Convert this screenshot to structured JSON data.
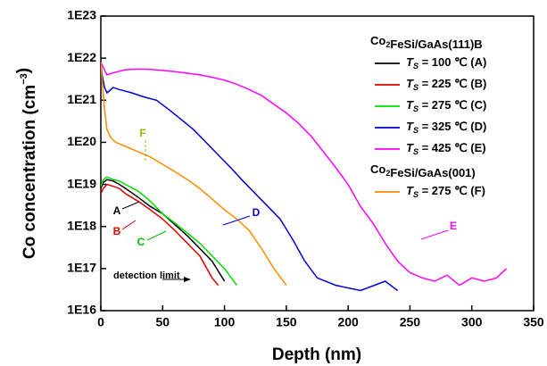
{
  "chart_data": {
    "type": "line",
    "xlabel": "Depth (nm)",
    "ylabel": "Co concentration (cm-3)",
    "xlim": [
      0,
      350
    ],
    "xticks": [
      0,
      50,
      100,
      150,
      200,
      250,
      300,
      350
    ],
    "ylim": [
      1e+16,
      1e+23
    ],
    "log_y": true,
    "yticks": [
      {
        "value": 1e+16,
        "label": "1E16"
      },
      {
        "value": 1e+17,
        "label": "1E17"
      },
      {
        "value": 1e+18,
        "label": "1E18"
      },
      {
        "value": 1e+19,
        "label": "1E19"
      },
      {
        "value": 1e+20,
        "label": "1E20"
      },
      {
        "value": 1e+21,
        "label": "1E21"
      },
      {
        "value": 1e+22,
        "label": "1E22"
      },
      {
        "value": 1e+23,
        "label": "1E23"
      }
    ],
    "legend_groups": [
      "Co2FeSi/GaAs(111)B",
      "Co2FeSi/GaAs(001)"
    ],
    "series": [
      {
        "name": "TS = 100 ℃ (A)",
        "color": "#000000",
        "group": 0,
        "x": [
          0,
          2,
          5,
          10,
          15,
          20,
          30,
          40,
          50,
          60,
          70,
          80,
          90,
          100
        ],
        "values": [
          8e+18,
          1.1e+19,
          1.3e+19,
          1.2e+19,
          1e+19,
          8e+18,
          5e+18,
          3e+18,
          2e+18,
          1.1e+18,
          6e+17,
          3e+17,
          1.5e+17,
          5e+16
        ]
      },
      {
        "name": "TS = 225 ℃ (B)",
        "color": "#e00000",
        "group": 0,
        "x": [
          0,
          2,
          5,
          10,
          15,
          20,
          30,
          40,
          50,
          60,
          70,
          80,
          90,
          95
        ],
        "values": [
          6e+18,
          8e+18,
          1e+19,
          9e+18,
          8e+18,
          6e+18,
          4e+18,
          2.5e+18,
          1.5e+18,
          8e+17,
          4e+17,
          2e+17,
          6e+16,
          4e+16
        ]
      },
      {
        "name": "TS = 275 ℃ (C)",
        "color": "#00e000",
        "group": 0,
        "x": [
          0,
          2,
          5,
          10,
          15,
          20,
          30,
          40,
          50,
          60,
          70,
          80,
          90,
          100,
          110
        ],
        "values": [
          9e+18,
          1.3e+19,
          1.5e+19,
          1.3e+19,
          1.2e+19,
          1e+19,
          7e+18,
          4e+18,
          2e+18,
          1.2e+18,
          7e+17,
          4e+17,
          2e+17,
          1e+17,
          4e+16
        ]
      },
      {
        "name": "TS = 325 ℃ (D)",
        "color": "#0000d0",
        "group": 0,
        "x": [
          0,
          1,
          3,
          5,
          10,
          15,
          25,
          35,
          45,
          55,
          65,
          75,
          85,
          95,
          105,
          115,
          125,
          135,
          145,
          155,
          165,
          175,
          190,
          210,
          230,
          240
        ],
        "values": [
          8e+21,
          4e+21,
          2e+21,
          1.5e+21,
          2e+21,
          1.8e+21,
          1.5e+21,
          1.2e+21,
          1e+21,
          6e+20,
          3.5e+20,
          2e+20,
          1e+20,
          5e+19,
          2.5e+19,
          1.2e+19,
          6e+18,
          3e+18,
          1.5e+18,
          5e+17,
          1.5e+17,
          6e+16,
          4e+16,
          3e+16,
          5e+16,
          3e+16
        ]
      },
      {
        "name": "TS = 425 ℃ (E)",
        "color": "#ff00ff",
        "group": 0,
        "x": [
          0,
          2,
          5,
          10,
          20,
          30,
          40,
          50,
          60,
          70,
          80,
          90,
          100,
          110,
          120,
          130,
          140,
          150,
          160,
          170,
          180,
          190,
          200,
          210,
          220,
          230,
          240,
          250,
          260,
          270,
          280,
          290,
          300,
          310,
          320,
          328
        ],
        "values": [
          8e+21,
          6e+21,
          4e+21,
          4.5e+21,
          5.3e+21,
          5.5e+21,
          5.4e+21,
          5.1e+21,
          4.8e+21,
          4.4e+21,
          4e+21,
          3.5e+21,
          3e+21,
          2.4e+21,
          1.8e+21,
          1.3e+21,
          8e+20,
          5e+20,
          2.8e+20,
          1.4e+20,
          6e+19,
          2.5e+19,
          1e+19,
          3e+18,
          1.2e+18,
          4e+17,
          1.5e+17,
          8e+16,
          6e+16,
          5e+16,
          7e+16,
          4e+16,
          6e+16,
          5e+16,
          6e+16,
          1e+17
        ]
      },
      {
        "name": "TS = 275 ℃ (F)",
        "color": "#ff8c00",
        "group": 1,
        "x": [
          0,
          1,
          3,
          5,
          8,
          12,
          20,
          30,
          40,
          50,
          60,
          70,
          80,
          90,
          100,
          110,
          120,
          130,
          140,
          150
        ],
        "values": [
          8e+21,
          3e+21,
          6e+20,
          2e+20,
          1.3e+20,
          1e+20,
          8e+19,
          6e+19,
          4.5e+19,
          3e+19,
          2e+19,
          1.3e+19,
          8e+18,
          4.5e+18,
          2.5e+18,
          1.5e+18,
          8e+17,
          3e+17,
          1e+17,
          4e+16
        ]
      }
    ],
    "annotations": [
      "A",
      "B",
      "C",
      "D",
      "E",
      "F",
      "detection limit"
    ]
  }
}
